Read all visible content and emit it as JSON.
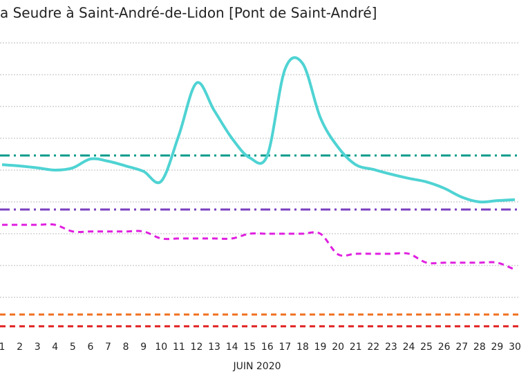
{
  "chart_data": {
    "type": "line",
    "title": "a Seudre à Saint-André-de-Lidon [Pont de Saint-André]",
    "xlabel": "JUIN 2020",
    "x": [
      1,
      2,
      3,
      4,
      5,
      6,
      7,
      8,
      9,
      10,
      11,
      12,
      13,
      14,
      15,
      16,
      17,
      18,
      19,
      20,
      21,
      22,
      23,
      24,
      25,
      26,
      27,
      28,
      29,
      30
    ],
    "xlim": [
      1,
      30
    ],
    "xticks": [
      1,
      2,
      3,
      4,
      5,
      6,
      7,
      8,
      9,
      10,
      11,
      12,
      13,
      14,
      15,
      16,
      17,
      18,
      19,
      20,
      21,
      22,
      23,
      24,
      25,
      26,
      27,
      28,
      29,
      30
    ],
    "ylim": [
      0,
      9
    ],
    "yticks": [
      1,
      2,
      3,
      4,
      5,
      6,
      7,
      8,
      9
    ],
    "grid": true,
    "series": [
      {
        "color": "#4fd3d3",
        "style": "solid",
        "values": [
          5.17,
          5.13,
          5.07,
          5.0,
          5.07,
          5.35,
          5.28,
          5.13,
          4.96,
          4.65,
          6.1,
          7.74,
          6.87,
          6.0,
          5.39,
          5.46,
          8.17,
          8.35,
          6.65,
          5.72,
          5.17,
          5.02,
          4.87,
          4.74,
          4.63,
          4.43,
          4.15,
          4.0,
          4.04,
          4.07
        ]
      },
      {
        "color": "#e020e0",
        "style": "dashed",
        "values": [
          3.28,
          3.28,
          3.28,
          3.28,
          3.07,
          3.07,
          3.07,
          3.07,
          3.07,
          2.85,
          2.85,
          2.85,
          2.85,
          2.85,
          3.0,
          3.0,
          3.0,
          3.0,
          3.0,
          2.35,
          2.37,
          2.37,
          2.37,
          2.37,
          2.09,
          2.09,
          2.09,
          2.09,
          2.09,
          1.87
        ]
      }
    ],
    "thresholds": [
      {
        "value": 5.46,
        "color": "#0a9a8a",
        "style": "dashdot"
      },
      {
        "value": 3.76,
        "color": "#7a3fbf",
        "style": "dashdot"
      },
      {
        "value": 0.46,
        "color": "#f07020",
        "style": "dashed"
      },
      {
        "value": 0.09,
        "color": "#e02020",
        "style": "dashed"
      }
    ]
  }
}
